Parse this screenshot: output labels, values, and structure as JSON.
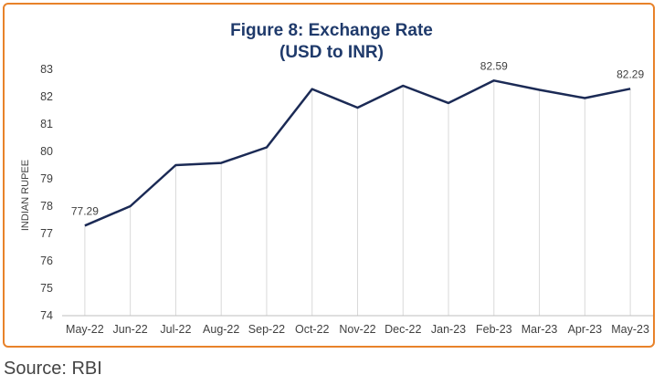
{
  "chart_data": {
    "type": "line",
    "title": "Figure 8: Exchange Rate",
    "subtitle": "(USD to INR)",
    "xlabel": "",
    "ylabel": "INDIAN RUPEE",
    "categories": [
      "May-22",
      "Jun-22",
      "Jul-22",
      "Aug-22",
      "Sep-22",
      "Oct-22",
      "Nov-22",
      "Dec-22",
      "Jan-23",
      "Feb-23",
      "Mar-23",
      "Apr-23",
      "May-23"
    ],
    "series": [
      {
        "values": [
          77.29,
          78.0,
          79.5,
          79.58,
          80.15,
          82.28,
          81.6,
          82.4,
          81.77,
          82.59,
          82.25,
          81.95,
          82.29
        ]
      }
    ],
    "data_labels": [
      {
        "index": 0,
        "text": "77.29"
      },
      {
        "index": 9,
        "text": "82.59"
      },
      {
        "index": 12,
        "text": "82.29"
      }
    ],
    "yticks": [
      "74",
      "75",
      "76",
      "77",
      "78",
      "79",
      "80",
      "81",
      "82",
      "83"
    ],
    "ylim": [
      74,
      83
    ],
    "grid": "vertical drop lines",
    "line_color": "#1b2a55",
    "title_color": "#1f3a6b",
    "border_color": "#e8822a"
  },
  "source": "Source: RBI"
}
